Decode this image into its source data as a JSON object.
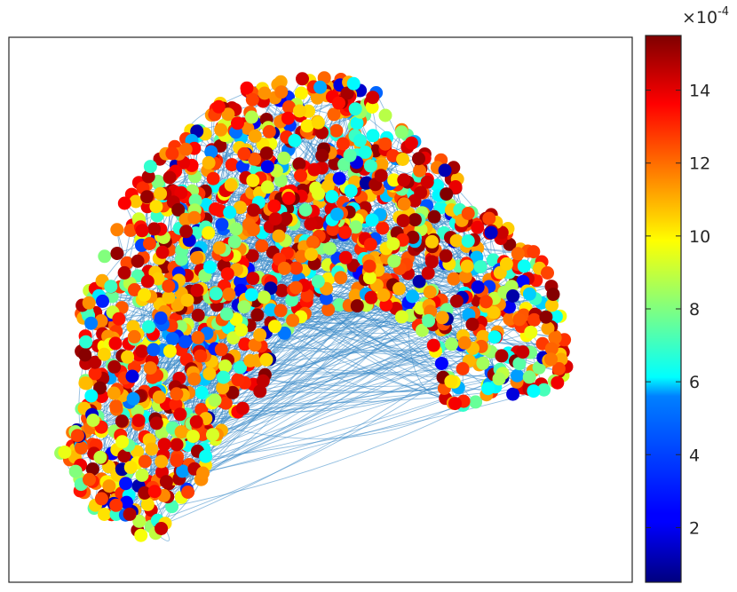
{
  "chart_data": {
    "type": "scatter",
    "subtype": "network-graph",
    "title": "",
    "xlabel": "",
    "ylabel": "",
    "axes_ticks_visible": false,
    "grid": false,
    "edge_color": "#3a8bc9",
    "node_colormap": "jet",
    "node_count_estimate": 1500,
    "colorbar": {
      "location": "right",
      "range": [
        0.5,
        15.5
      ],
      "ticks": [
        2,
        4,
        6,
        8,
        10,
        12,
        14
      ],
      "tick_labels": [
        "2",
        "4",
        "6",
        "8",
        "10",
        "12",
        "14"
      ],
      "multiplier_base": "×10",
      "multiplier_exponent": "-4"
    },
    "layout_regions_note": "arch-shaped cluster: left leg, top, right lobe",
    "value_distribution": "mostly 10-15, some 4-9, few below 4"
  }
}
